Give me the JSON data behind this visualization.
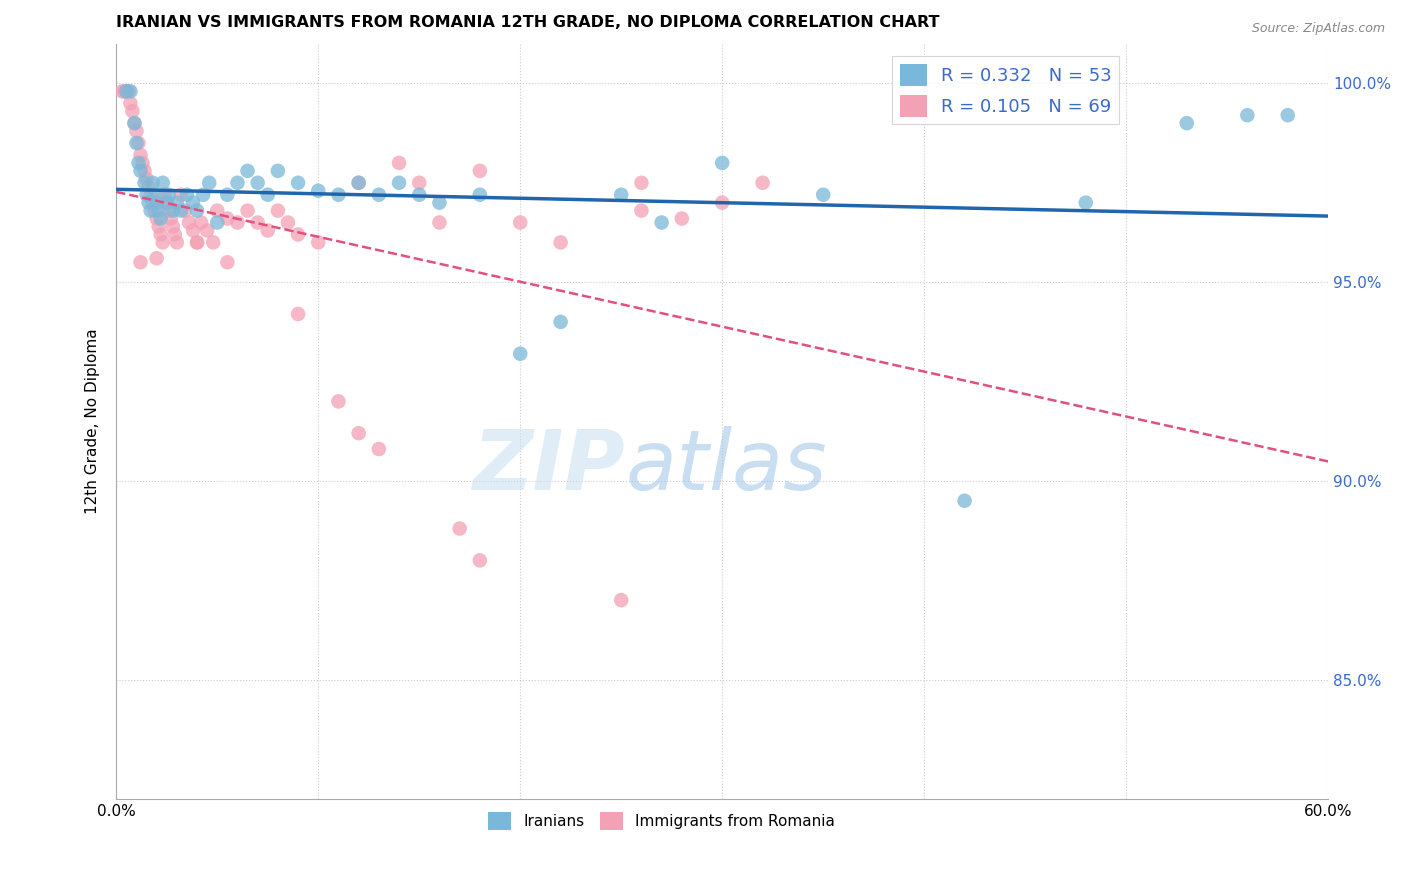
{
  "title": "IRANIAN VS IMMIGRANTS FROM ROMANIA 12TH GRADE, NO DIPLOMA CORRELATION CHART",
  "source": "Source: ZipAtlas.com",
  "ylabel": "12th Grade, No Diploma",
  "xmin": 0.0,
  "xmax": 0.6,
  "ymin": 0.82,
  "ymax": 1.01,
  "yticks": [
    0.85,
    0.9,
    0.95,
    1.0
  ],
  "ytick_labels": [
    "85.0%",
    "90.0%",
    "95.0%",
    "100.0%"
  ],
  "xticks": [
    0.0,
    0.1,
    0.2,
    0.3,
    0.4,
    0.5,
    0.6
  ],
  "xtick_labels": [
    "0.0%",
    "",
    "",
    "",
    "",
    "",
    "60.0%"
  ],
  "iranians_R": 0.332,
  "iranians_N": 53,
  "romania_R": 0.105,
  "romania_N": 69,
  "iranians_color": "#7ab8d9",
  "romania_color": "#f4a0b5",
  "iranians_line_color": "#2166ac",
  "romania_line_color": "#e05080",
  "background_color": "#ffffff",
  "iranians_x": [
    0.005,
    0.007,
    0.009,
    0.01,
    0.011,
    0.012,
    0.014,
    0.015,
    0.016,
    0.017,
    0.018,
    0.019,
    0.02,
    0.021,
    0.022,
    0.023,
    0.025,
    0.026,
    0.028,
    0.03,
    0.032,
    0.035,
    0.038,
    0.04,
    0.043,
    0.046,
    0.05,
    0.055,
    0.06,
    0.065,
    0.07,
    0.075,
    0.08,
    0.09,
    0.1,
    0.11,
    0.12,
    0.13,
    0.14,
    0.15,
    0.16,
    0.18,
    0.2,
    0.22,
    0.25,
    0.27,
    0.3,
    0.35,
    0.42,
    0.48,
    0.53,
    0.56,
    0.58
  ],
  "iranians_y": [
    0.998,
    0.998,
    0.99,
    0.985,
    0.98,
    0.978,
    0.975,
    0.972,
    0.97,
    0.968,
    0.975,
    0.972,
    0.97,
    0.968,
    0.966,
    0.975,
    0.97,
    0.972,
    0.968,
    0.97,
    0.968,
    0.972,
    0.97,
    0.968,
    0.972,
    0.975,
    0.965,
    0.972,
    0.975,
    0.978,
    0.975,
    0.972,
    0.978,
    0.975,
    0.973,
    0.972,
    0.975,
    0.972,
    0.975,
    0.972,
    0.97,
    0.972,
    0.932,
    0.94,
    0.972,
    0.965,
    0.98,
    0.972,
    0.895,
    0.97,
    0.99,
    0.992,
    0.992
  ],
  "romania_x": [
    0.003,
    0.004,
    0.005,
    0.006,
    0.007,
    0.008,
    0.009,
    0.01,
    0.011,
    0.012,
    0.013,
    0.014,
    0.015,
    0.016,
    0.017,
    0.018,
    0.019,
    0.02,
    0.021,
    0.022,
    0.023,
    0.024,
    0.025,
    0.026,
    0.027,
    0.028,
    0.029,
    0.03,
    0.032,
    0.034,
    0.036,
    0.038,
    0.04,
    0.042,
    0.045,
    0.048,
    0.05,
    0.055,
    0.06,
    0.065,
    0.07,
    0.075,
    0.08,
    0.085,
    0.09,
    0.1,
    0.11,
    0.12,
    0.13,
    0.14,
    0.15,
    0.16,
    0.17,
    0.18,
    0.2,
    0.22,
    0.25,
    0.26,
    0.28,
    0.3,
    0.012,
    0.02,
    0.04,
    0.055,
    0.09,
    0.12,
    0.18,
    0.26,
    0.32
  ],
  "romania_y": [
    0.998,
    0.998,
    0.998,
    0.998,
    0.995,
    0.993,
    0.99,
    0.988,
    0.985,
    0.982,
    0.98,
    0.978,
    0.976,
    0.974,
    0.972,
    0.97,
    0.968,
    0.966,
    0.964,
    0.962,
    0.96,
    0.972,
    0.97,
    0.968,
    0.966,
    0.964,
    0.962,
    0.96,
    0.972,
    0.968,
    0.965,
    0.963,
    0.96,
    0.965,
    0.963,
    0.96,
    0.968,
    0.966,
    0.965,
    0.968,
    0.965,
    0.963,
    0.968,
    0.965,
    0.962,
    0.96,
    0.92,
    0.912,
    0.908,
    0.98,
    0.975,
    0.965,
    0.888,
    0.88,
    0.965,
    0.96,
    0.87,
    0.968,
    0.966,
    0.97,
    0.955,
    0.956,
    0.96,
    0.955,
    0.942,
    0.975,
    0.978,
    0.975,
    0.975
  ]
}
